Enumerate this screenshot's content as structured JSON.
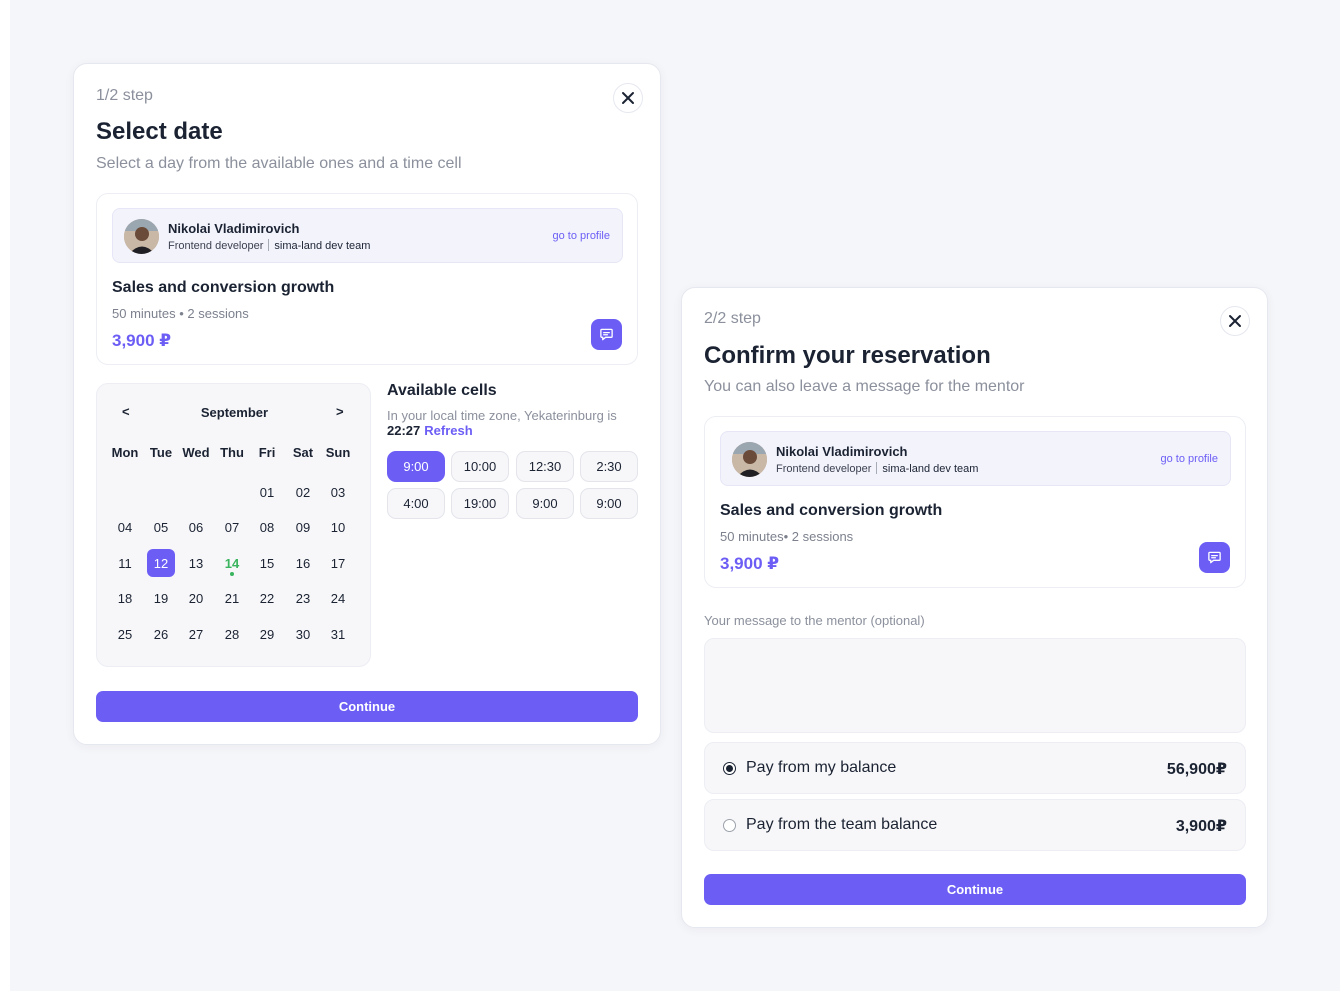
{
  "step1": {
    "step_label": "1/2 step",
    "title": "Select date",
    "subtitle": "Select a day from the available ones and a time cell",
    "continue_label": "Continue"
  },
  "step2": {
    "step_label": "2/2 step",
    "title": "Confirm your reservation",
    "subtitle": "You can also leave a message for the mentor",
    "message_label": "Your message to the mentor (optional)",
    "message_value": "",
    "continue_label": "Continue",
    "payment_options": [
      {
        "label": "Pay from my balance",
        "amount": "56,900₽",
        "selected": true
      },
      {
        "label": "Pay from the team balance",
        "amount": "3,900₽",
        "selected": false
      }
    ]
  },
  "mentor": {
    "name": "Nikolai Vladimirovich",
    "role": "Frontend developer",
    "team": "sima-land dev team",
    "profile_link": "go to profile"
  },
  "course": {
    "title": "Sales and conversion growth",
    "meta_step1": "50 minutes • 2 sessions",
    "meta_step2": "50 minutes• 2 sessions",
    "price": "3,900 ₽"
  },
  "calendar": {
    "prev": "<",
    "next": ">",
    "month": "September",
    "weekdays": [
      "Mon",
      "Tue",
      "Wed",
      "Thu",
      "Fri",
      "Sat",
      "Sun"
    ],
    "weeks": [
      [
        "",
        "",
        "",
        "",
        "01",
        "02",
        "03"
      ],
      [
        "04",
        "05",
        "06",
        "07",
        "08",
        "09",
        "10"
      ],
      [
        "11",
        "12",
        "13",
        "14",
        "15",
        "16",
        "17"
      ],
      [
        "18",
        "19",
        "20",
        "21",
        "22",
        "23",
        "24"
      ],
      [
        "25",
        "26",
        "27",
        "28",
        "29",
        "30",
        "31"
      ]
    ],
    "selected_day": "12",
    "today": "14"
  },
  "cells": {
    "title": "Available cells",
    "tz_text": "In your local time zone, Yekaterinburg is",
    "time": "22:27",
    "refresh": "Refresh",
    "slots": [
      "9:00",
      "10:00",
      "12:30",
      "2:30",
      "4:00",
      "19:00",
      "9:00",
      "9:00"
    ],
    "active_index": 0
  },
  "colors": {
    "accent": "#6c5ef5",
    "today": "#3ab45e",
    "text": "#1b2333",
    "muted": "#8b909c",
    "background": "#f5f6fa"
  },
  "icons": {
    "close": "close-icon",
    "chat": "chat-icon",
    "radio_checked": "radio-checked-icon",
    "radio_unchecked": "radio-unchecked-icon"
  }
}
